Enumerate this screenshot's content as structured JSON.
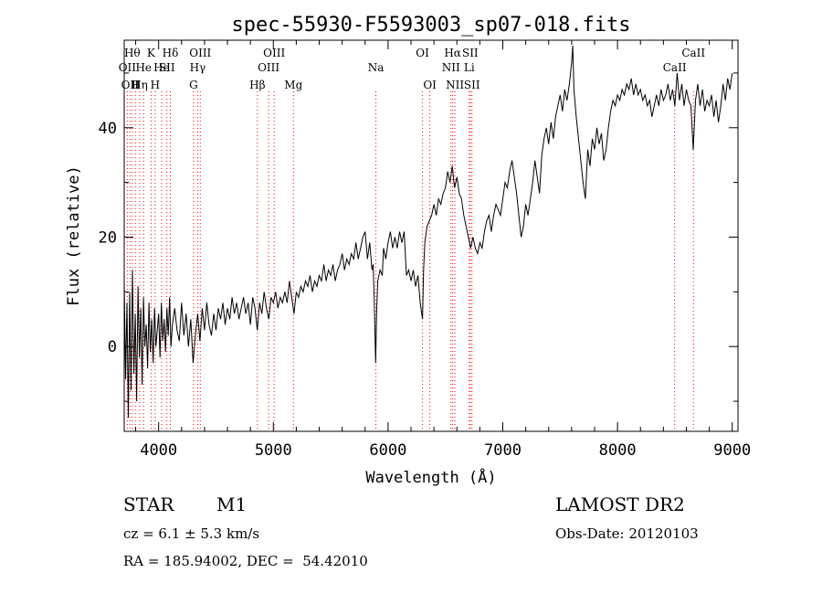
{
  "chart_data": {
    "type": "line",
    "title": "spec-55930-F5593003_sp07-018.fits",
    "xlabel": "Wavelength (Å)",
    "ylabel": "Flux (relative)",
    "xlim": [
      3700,
      9050
    ],
    "ylim": [
      -15.5,
      56
    ],
    "xticks": [
      4000,
      5000,
      6000,
      7000,
      8000,
      9000
    ],
    "yticks": [
      0,
      20,
      40
    ],
    "x_tick_labels": [
      "4000",
      "5000",
      "6000",
      "7000",
      "8000",
      "9000"
    ],
    "y_tick_labels": [
      "0",
      "20",
      "40"
    ],
    "line_color": "#000000",
    "marker_color": "#ff0000",
    "line_markers": [
      {
        "wavelength": 3727,
        "label": "OII",
        "row": 2
      },
      {
        "wavelength": 3750,
        "label": "OII",
        "row": 3
      },
      {
        "wavelength": 3770,
        "label": "Hθ",
        "row": 1
      },
      {
        "wavelength": 3797,
        "label": "H",
        "row": 3
      },
      {
        "wavelength": 3835,
        "label": "Hη",
        "row": 3
      },
      {
        "wavelength": 3869,
        "label": "He",
        "row": 2
      },
      {
        "wavelength": 3934,
        "label": "K",
        "row": 1
      },
      {
        "wavelength": 3970,
        "label": "H",
        "row": 3
      },
      {
        "wavelength": 4026,
        "label": "He",
        "row": 2
      },
      {
        "wavelength": 4072,
        "label": "SII",
        "row": 2
      },
      {
        "wavelength": 4102,
        "label": "Hδ",
        "row": 1
      },
      {
        "wavelength": 4304,
        "label": "G",
        "row": 3
      },
      {
        "wavelength": 4340,
        "label": "Hγ",
        "row": 2
      },
      {
        "wavelength": 4363,
        "label": "OIII",
        "row": 1
      },
      {
        "wavelength": 4861,
        "label": "Hβ",
        "row": 3
      },
      {
        "wavelength": 4959,
        "label": "OIII",
        "row": 2
      },
      {
        "wavelength": 5007,
        "label": "OIII",
        "row": 1
      },
      {
        "wavelength": 5175,
        "label": "Mg",
        "row": 3
      },
      {
        "wavelength": 5894,
        "label": "Na",
        "row": 2
      },
      {
        "wavelength": 6300,
        "label": "OI",
        "row": 1
      },
      {
        "wavelength": 6364,
        "label": "OI",
        "row": 3
      },
      {
        "wavelength": 6548,
        "label": "NII",
        "row": 2
      },
      {
        "wavelength": 6563,
        "label": "Hα",
        "row": 1
      },
      {
        "wavelength": 6583,
        "label": "NII",
        "row": 3
      },
      {
        "wavelength": 6708,
        "label": "Li",
        "row": 2
      },
      {
        "wavelength": 6716,
        "label": "SII",
        "row": 1
      },
      {
        "wavelength": 6731,
        "label": "SII",
        "row": 3
      },
      {
        "wavelength": 8498,
        "label": "CaII",
        "row": 2
      },
      {
        "wavelength": 8662,
        "label": "CaII",
        "row": 1
      }
    ],
    "series": [
      {
        "points": [
          [
            3700,
            12
          ],
          [
            3712,
            -6
          ],
          [
            3724,
            8
          ],
          [
            3736,
            -13
          ],
          [
            3748,
            10
          ],
          [
            3760,
            -8
          ],
          [
            3772,
            14
          ],
          [
            3784,
            -5
          ],
          [
            3796,
            6
          ],
          [
            3808,
            -10
          ],
          [
            3820,
            11
          ],
          [
            3832,
            -2
          ],
          [
            3844,
            7
          ],
          [
            3856,
            -7
          ],
          [
            3868,
            9
          ],
          [
            3880,
            0
          ],
          [
            3892,
            4
          ],
          [
            3904,
            -4
          ],
          [
            3916,
            8
          ],
          [
            3928,
            -1
          ],
          [
            3940,
            5
          ],
          [
            3952,
            -3
          ],
          [
            3964,
            7
          ],
          [
            3976,
            0
          ],
          [
            3988,
            3
          ],
          [
            4000,
            6
          ],
          [
            4012,
            -2
          ],
          [
            4024,
            8
          ],
          [
            4036,
            1
          ],
          [
            4048,
            5
          ],
          [
            4060,
            -1
          ],
          [
            4072,
            7
          ],
          [
            4084,
            2
          ],
          [
            4096,
            9
          ],
          [
            4108,
            0
          ],
          [
            4120,
            4
          ],
          [
            4140,
            7
          ],
          [
            4160,
            3
          ],
          [
            4180,
            1
          ],
          [
            4200,
            8
          ],
          [
            4220,
            2
          ],
          [
            4240,
            6
          ],
          [
            4260,
            0
          ],
          [
            4280,
            5
          ],
          [
            4300,
            -3
          ],
          [
            4320,
            2
          ],
          [
            4340,
            6
          ],
          [
            4360,
            1
          ],
          [
            4380,
            7
          ],
          [
            4400,
            3
          ],
          [
            4420,
            8
          ],
          [
            4440,
            4
          ],
          [
            4460,
            2
          ],
          [
            4480,
            6
          ],
          [
            4500,
            3
          ],
          [
            4520,
            7
          ],
          [
            4540,
            5
          ],
          [
            4560,
            8
          ],
          [
            4580,
            4
          ],
          [
            4600,
            7
          ],
          [
            4620,
            5
          ],
          [
            4640,
            9
          ],
          [
            4660,
            6
          ],
          [
            4680,
            8
          ],
          [
            4700,
            5
          ],
          [
            4720,
            7
          ],
          [
            4740,
            9
          ],
          [
            4760,
            6
          ],
          [
            4780,
            8
          ],
          [
            4800,
            4
          ],
          [
            4820,
            9
          ],
          [
            4840,
            7
          ],
          [
            4860,
            3
          ],
          [
            4880,
            8
          ],
          [
            4900,
            6
          ],
          [
            4920,
            10
          ],
          [
            4940,
            7
          ],
          [
            4960,
            5
          ],
          [
            4980,
            9
          ],
          [
            5000,
            8
          ],
          [
            5020,
            10
          ],
          [
            5040,
            7
          ],
          [
            5060,
            9
          ],
          [
            5080,
            8
          ],
          [
            5100,
            10
          ],
          [
            5120,
            8
          ],
          [
            5140,
            12
          ],
          [
            5160,
            9
          ],
          [
            5180,
            6
          ],
          [
            5200,
            10
          ],
          [
            5220,
            9
          ],
          [
            5240,
            11
          ],
          [
            5260,
            10
          ],
          [
            5280,
            12
          ],
          [
            5300,
            11
          ],
          [
            5320,
            13
          ],
          [
            5340,
            10
          ],
          [
            5360,
            12
          ],
          [
            5380,
            11
          ],
          [
            5400,
            13
          ],
          [
            5420,
            12
          ],
          [
            5440,
            15
          ],
          [
            5460,
            12
          ],
          [
            5480,
            14
          ],
          [
            5500,
            13
          ],
          [
            5520,
            15
          ],
          [
            5540,
            12
          ],
          [
            5560,
            14
          ],
          [
            5580,
            15
          ],
          [
            5600,
            17
          ],
          [
            5620,
            14
          ],
          [
            5640,
            16
          ],
          [
            5660,
            15
          ],
          [
            5680,
            17
          ],
          [
            5700,
            16
          ],
          [
            5720,
            19
          ],
          [
            5740,
            16
          ],
          [
            5760,
            18
          ],
          [
            5780,
            20
          ],
          [
            5800,
            21
          ],
          [
            5820,
            16
          ],
          [
            5840,
            19
          ],
          [
            5860,
            14
          ],
          [
            5870,
            15
          ],
          [
            5880,
            8
          ],
          [
            5892,
            -3
          ],
          [
            5900,
            6
          ],
          [
            5910,
            12
          ],
          [
            5930,
            14
          ],
          [
            5950,
            13
          ],
          [
            5960,
            18
          ],
          [
            5980,
            16
          ],
          [
            6000,
            19
          ],
          [
            6020,
            21
          ],
          [
            6040,
            18
          ],
          [
            6060,
            20
          ],
          [
            6080,
            18
          ],
          [
            6100,
            21
          ],
          [
            6120,
            19
          ],
          [
            6140,
            21
          ],
          [
            6160,
            13
          ],
          [
            6180,
            14
          ],
          [
            6200,
            12
          ],
          [
            6220,
            14
          ],
          [
            6240,
            11
          ],
          [
            6260,
            13
          ],
          [
            6280,
            8
          ],
          [
            6300,
            5
          ],
          [
            6310,
            14
          ],
          [
            6320,
            19
          ],
          [
            6340,
            22
          ],
          [
            6360,
            23
          ],
          [
            6380,
            24
          ],
          [
            6400,
            26
          ],
          [
            6420,
            24
          ],
          [
            6440,
            27
          ],
          [
            6460,
            26
          ],
          [
            6480,
            28
          ],
          [
            6500,
            29
          ],
          [
            6520,
            32
          ],
          [
            6540,
            30
          ],
          [
            6560,
            33
          ],
          [
            6580,
            29
          ],
          [
            6600,
            31
          ],
          [
            6620,
            28
          ],
          [
            6640,
            27
          ],
          [
            6660,
            24
          ],
          [
            6680,
            22
          ],
          [
            6700,
            20
          ],
          [
            6720,
            18
          ],
          [
            6740,
            20
          ],
          [
            6760,
            18
          ],
          [
            6780,
            17
          ],
          [
            6800,
            19
          ],
          [
            6820,
            18
          ],
          [
            6840,
            21
          ],
          [
            6860,
            23
          ],
          [
            6880,
            24
          ],
          [
            6900,
            21
          ],
          [
            6920,
            24
          ],
          [
            6940,
            26
          ],
          [
            6960,
            25
          ],
          [
            6980,
            24
          ],
          [
            7000,
            27
          ],
          [
            7020,
            30
          ],
          [
            7040,
            29
          ],
          [
            7060,
            32
          ],
          [
            7080,
            34
          ],
          [
            7100,
            31
          ],
          [
            7120,
            28
          ],
          [
            7140,
            24
          ],
          [
            7160,
            20
          ],
          [
            7180,
            22
          ],
          [
            7200,
            26
          ],
          [
            7220,
            24
          ],
          [
            7240,
            27
          ],
          [
            7260,
            30
          ],
          [
            7280,
            34
          ],
          [
            7300,
            31
          ],
          [
            7320,
            28
          ],
          [
            7340,
            35
          ],
          [
            7360,
            38
          ],
          [
            7380,
            40
          ],
          [
            7400,
            37
          ],
          [
            7420,
            41
          ],
          [
            7440,
            38
          ],
          [
            7460,
            42
          ],
          [
            7480,
            44
          ],
          [
            7500,
            46
          ],
          [
            7520,
            43
          ],
          [
            7540,
            47
          ],
          [
            7560,
            45
          ],
          [
            7580,
            48
          ],
          [
            7600,
            52
          ],
          [
            7610,
            55
          ],
          [
            7620,
            47
          ],
          [
            7640,
            42
          ],
          [
            7660,
            38
          ],
          [
            7680,
            34
          ],
          [
            7700,
            30
          ],
          [
            7720,
            27
          ],
          [
            7740,
            36
          ],
          [
            7760,
            33
          ],
          [
            7780,
            38
          ],
          [
            7800,
            36
          ],
          [
            7820,
            40
          ],
          [
            7840,
            37
          ],
          [
            7860,
            39
          ],
          [
            7880,
            34
          ],
          [
            7900,
            36
          ],
          [
            7920,
            40
          ],
          [
            7940,
            43
          ],
          [
            7960,
            45
          ],
          [
            7980,
            44
          ],
          [
            8000,
            46
          ],
          [
            8020,
            45
          ],
          [
            8040,
            47
          ],
          [
            8060,
            46
          ],
          [
            8080,
            48
          ],
          [
            8100,
            47
          ],
          [
            8120,
            49
          ],
          [
            8140,
            46
          ],
          [
            8160,
            48
          ],
          [
            8180,
            46
          ],
          [
            8200,
            47
          ],
          [
            8220,
            45
          ],
          [
            8240,
            46
          ],
          [
            8260,
            44
          ],
          [
            8280,
            45
          ],
          [
            8300,
            42
          ],
          [
            8320,
            44
          ],
          [
            8340,
            46
          ],
          [
            8360,
            44
          ],
          [
            8380,
            47
          ],
          [
            8400,
            45
          ],
          [
            8420,
            46
          ],
          [
            8440,
            48
          ],
          [
            8460,
            45
          ],
          [
            8480,
            47
          ],
          [
            8500,
            44
          ],
          [
            8520,
            50
          ],
          [
            8540,
            45
          ],
          [
            8560,
            48
          ],
          [
            8580,
            44
          ],
          [
            8600,
            47
          ],
          [
            8620,
            45
          ],
          [
            8640,
            44
          ],
          [
            8660,
            36
          ],
          [
            8680,
            45
          ],
          [
            8700,
            48
          ],
          [
            8720,
            44
          ],
          [
            8740,
            47
          ],
          [
            8760,
            43
          ],
          [
            8780,
            45
          ],
          [
            8800,
            44
          ],
          [
            8820,
            46
          ],
          [
            8840,
            42
          ],
          [
            8860,
            45
          ],
          [
            8880,
            41
          ],
          [
            8900,
            44
          ],
          [
            8920,
            48
          ],
          [
            8940,
            45
          ],
          [
            8960,
            49
          ],
          [
            8980,
            47
          ],
          [
            9000,
            50
          ]
        ]
      }
    ]
  },
  "info": {
    "object_type": "STAR",
    "subclass": "M1",
    "survey": "LAMOST DR2",
    "cz": "cz = 6.1 ± 5.3 km/s",
    "obs_date": "Obs-Date: 20120103",
    "coords": "RA = 185.94002, DEC =  54.42010"
  }
}
